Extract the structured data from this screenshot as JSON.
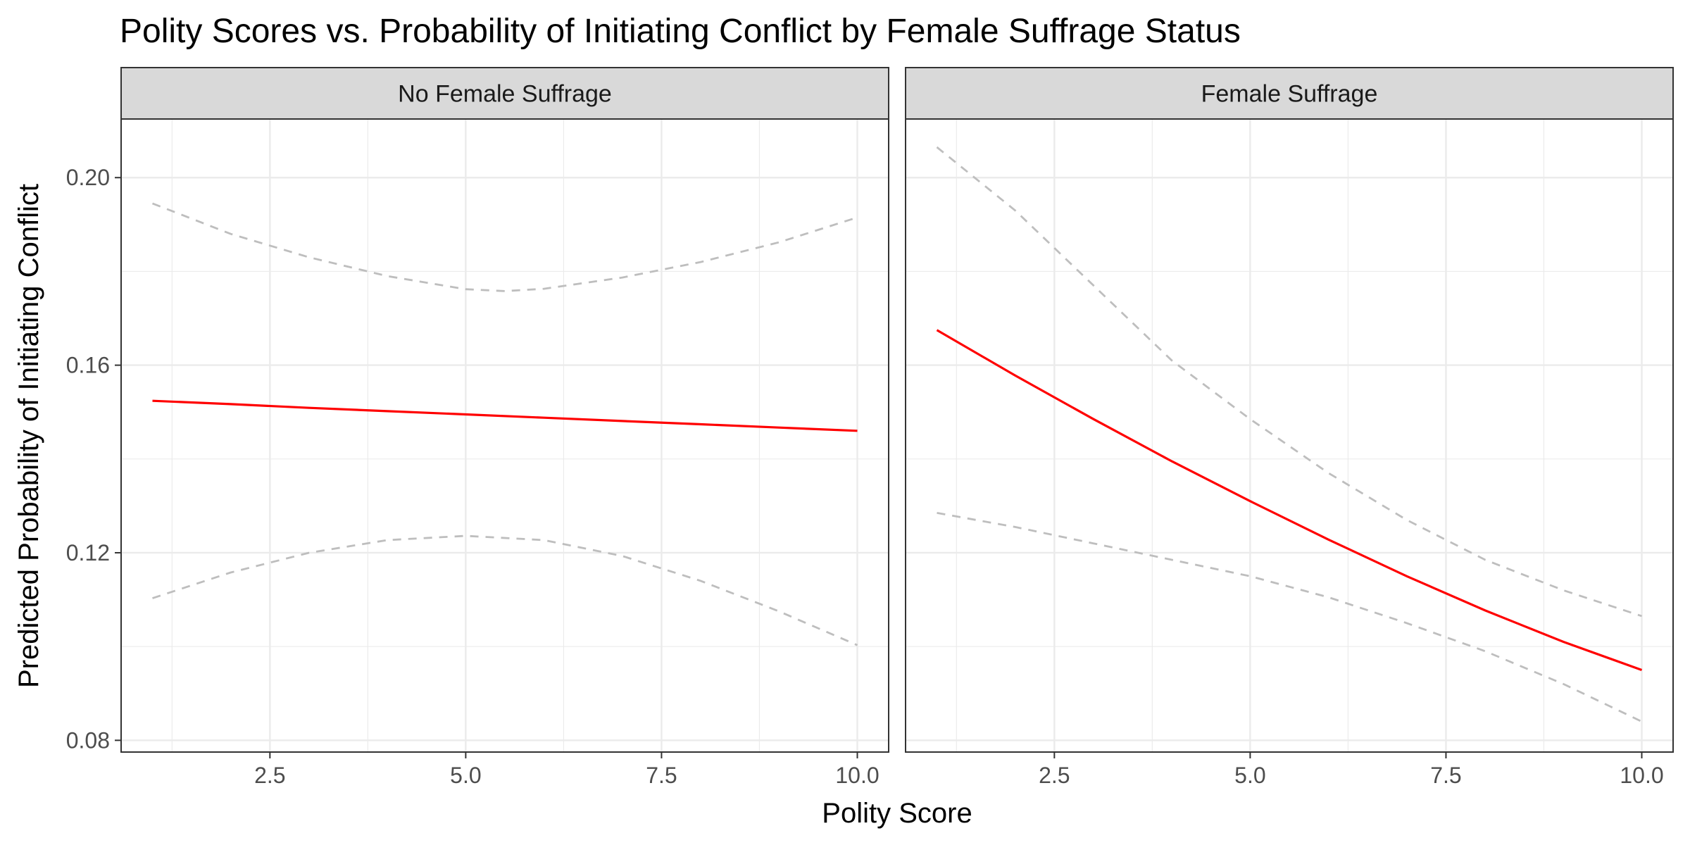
{
  "chart_data": {
    "type": "line",
    "title": "Polity Scores vs. Probability of Initiating Conflict by Female Suffrage Status",
    "xlabel": "Polity Score",
    "ylabel": "Predicted Probability of Initiating Conflict",
    "xlim": [
      0.6,
      10.4
    ],
    "ylim": [
      0.0775,
      0.2125
    ],
    "x_ticks": [
      "2.5",
      "5.0",
      "7.5",
      "10.0"
    ],
    "y_ticks": [
      "0.08",
      "0.12",
      "0.16",
      "0.20"
    ],
    "grid": true,
    "legend": "none",
    "colors": {
      "fit": "#ff0000",
      "ci": "#bebebe",
      "strip": "#d9d9d9",
      "grid": "#ebebeb"
    },
    "panels": [
      {
        "label": "No Female Suffrage",
        "series": [
          {
            "role": "fit",
            "style": "solid",
            "x": [
              1,
              2,
              3,
              4,
              5,
              6,
              7,
              8,
              9,
              10
            ],
            "values": [
              0.1524,
              0.1517,
              0.1509,
              0.1502,
              0.1495,
              0.1488,
              0.1481,
              0.1474,
              0.1467,
              0.146
            ]
          },
          {
            "role": "upper",
            "style": "dashed",
            "x": [
              1,
              2,
              3,
              4,
              5,
              5.5,
              6,
              7,
              8,
              9,
              10
            ],
            "values": [
              0.1945,
              0.188,
              0.183,
              0.179,
              0.1762,
              0.1758,
              0.1763,
              0.1787,
              0.182,
              0.1862,
              0.1915
            ]
          },
          {
            "role": "lower",
            "style": "dashed",
            "x": [
              1,
              2,
              3,
              4,
              5,
              6,
              7,
              8,
              9,
              10
            ],
            "values": [
              0.1103,
              0.1158,
              0.12,
              0.1227,
              0.1236,
              0.1227,
              0.1193,
              0.114,
              0.1075,
              0.1003
            ]
          }
        ]
      },
      {
        "label": "Female Suffrage",
        "series": [
          {
            "role": "fit",
            "style": "solid",
            "x": [
              1,
              2,
              3,
              4,
              5,
              6,
              7,
              8,
              9,
              10
            ],
            "values": [
              0.1675,
              0.1578,
              0.1485,
              0.1395,
              0.131,
              0.1228,
              0.115,
              0.1077,
              0.101,
              0.095
            ]
          },
          {
            "role": "upper",
            "style": "dashed",
            "x": [
              1,
              2,
              3,
              4,
              5,
              6,
              7,
              8,
              9,
              10
            ],
            "values": [
              0.2065,
              0.193,
              0.177,
              0.161,
              0.1485,
              0.137,
              0.127,
              0.1185,
              0.112,
              0.1065
            ]
          },
          {
            "role": "lower",
            "style": "dashed",
            "x": [
              1,
              2,
              3,
              4,
              5,
              6,
              7,
              8,
              9,
              10
            ],
            "values": [
              0.1285,
              0.1255,
              0.122,
              0.1185,
              0.115,
              0.1105,
              0.105,
              0.099,
              0.092,
              0.084
            ]
          }
        ]
      }
    ]
  }
}
